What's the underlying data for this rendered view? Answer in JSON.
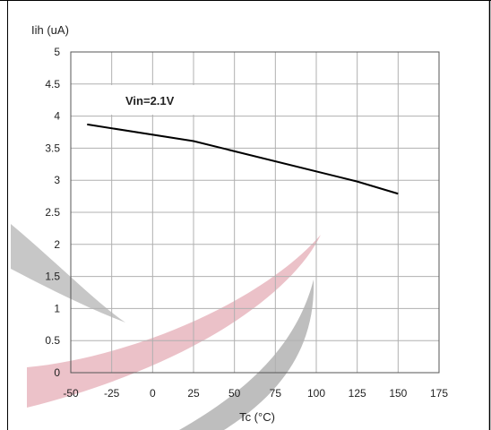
{
  "chart_data": {
    "type": "line",
    "ylabel": "Iih (uA)",
    "xlabel": "Tc (°C)",
    "xlim": [
      -50,
      175
    ],
    "ylim": [
      0,
      5
    ],
    "x_ticks": [
      -50,
      -25,
      0,
      25,
      50,
      75,
      100,
      125,
      150,
      175
    ],
    "y_ticks": [
      0,
      0.5,
      1,
      1.5,
      2,
      2.5,
      3,
      3.5,
      4,
      4.5,
      5
    ],
    "x_tick_labels": [
      "-50",
      "-25",
      "0",
      "25",
      "50",
      "75",
      "100",
      "125",
      "150",
      "175"
    ],
    "y_tick_labels": [
      "0",
      "0.5",
      "1",
      "1.5",
      "2",
      "2.5",
      "3",
      "3.5",
      "4",
      "4.5",
      "5"
    ],
    "grid": true,
    "annotation": "Vin=2.1V",
    "series": [
      {
        "x": [
          -40,
          25,
          125,
          150
        ],
        "y": [
          3.87,
          3.61,
          2.98,
          2.79
        ]
      }
    ]
  },
  "colors": {
    "line": "#000000",
    "grid": "#b0b0b0",
    "frame": "#000000",
    "watermark_red": "#dc8f9c",
    "watermark_gray": "#8a8a8a"
  }
}
